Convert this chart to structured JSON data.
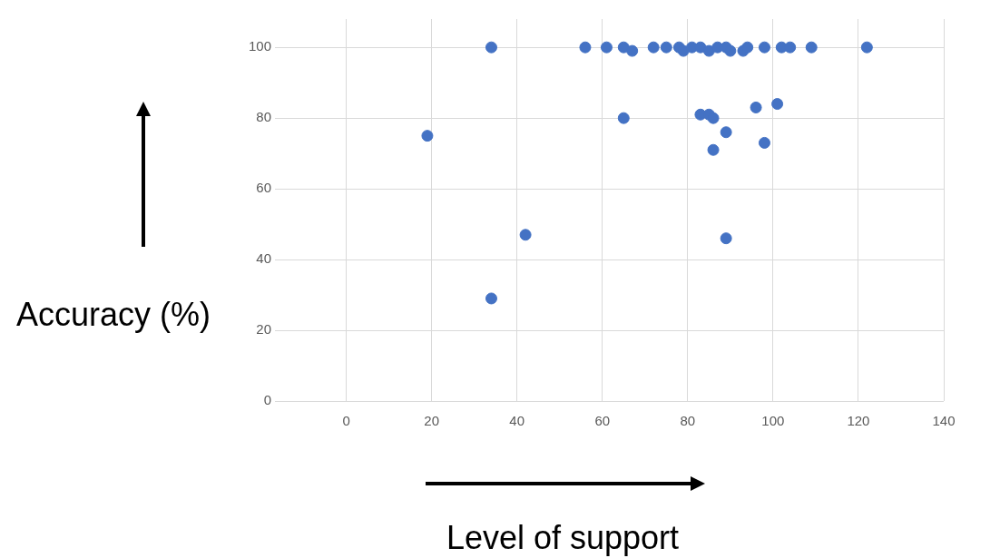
{
  "chart_data": {
    "type": "scatter",
    "xlabel": "Level of support",
    "ylabel": "Accuracy (%)",
    "x": [
      34,
      56,
      61,
      65,
      67,
      72,
      75,
      78,
      79,
      81,
      83,
      85,
      87,
      89,
      90,
      93,
      94,
      98,
      102,
      104,
      109,
      122,
      19,
      65,
      83,
      85,
      86,
      96,
      101,
      89,
      86,
      98,
      42,
      89,
      34
    ],
    "values": [
      100,
      100,
      100,
      100,
      99,
      100,
      100,
      100,
      99,
      100,
      100,
      99,
      100,
      100,
      99,
      99,
      100,
      100,
      100,
      100,
      100,
      100,
      75,
      80,
      81,
      81,
      80,
      83,
      84,
      76,
      71,
      73,
      47,
      46,
      29
    ],
    "color": "#4472c4",
    "marker": "circle",
    "xlim": [
      -15,
      140
    ],
    "xticks": [
      0,
      20,
      40,
      60,
      80,
      100,
      120,
      140
    ],
    "ylim": [
      0,
      108
    ],
    "yticks": [
      0,
      20,
      40,
      60,
      80,
      100
    ],
    "grid": true,
    "legend": false
  }
}
